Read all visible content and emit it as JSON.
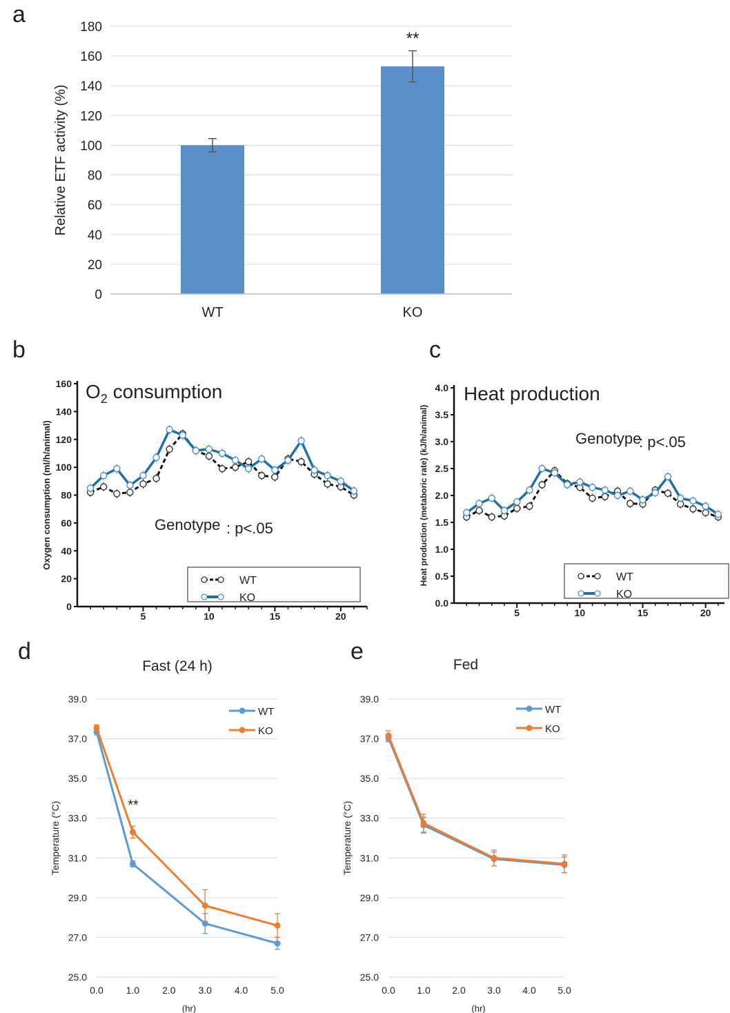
{
  "panels": {
    "a": "a",
    "b": "b",
    "c": "c",
    "d": "d",
    "e": "e"
  },
  "chart_data": [
    {
      "id": "a",
      "type": "bar",
      "categories": [
        "WT",
        "KO"
      ],
      "values": [
        100,
        153
      ],
      "errors": [
        4.5,
        10.5
      ],
      "ylabel": "Relative ETF activity (%)",
      "ylim": [
        0,
        180
      ],
      "yticks": [
        0,
        20,
        40,
        60,
        80,
        100,
        120,
        140,
        160,
        180
      ],
      "grid": true,
      "annotation": "**",
      "colors": {
        "bar": "#5b8fc9",
        "error": "#555555",
        "grid": "#d9d9d9"
      }
    },
    {
      "id": "b",
      "type": "line",
      "title_main": "O",
      "title_sub": "2",
      "title_rest": " consumption",
      "ylabel": "Oxygen consumption (ml/h/animal)",
      "ylim": [
        0,
        160
      ],
      "xlim": [
        0,
        22
      ],
      "yticks": [
        0,
        20,
        40,
        60,
        80,
        100,
        120,
        140,
        160
      ],
      "xticks": [
        5,
        10,
        15,
        20
      ],
      "x": [
        1,
        2,
        3,
        4,
        5,
        6,
        7,
        8,
        9,
        10,
        11,
        12,
        13,
        14,
        15,
        16,
        17,
        18,
        19,
        20,
        21
      ],
      "series": [
        {
          "name": "WT",
          "values": [
            82,
            86,
            81,
            82,
            88,
            92,
            113,
            124,
            112,
            108,
            99,
            100,
            104,
            94,
            93,
            106,
            104,
            95,
            88,
            86,
            80
          ]
        },
        {
          "name": "KO",
          "values": [
            85,
            94,
            99,
            87,
            94,
            107,
            127,
            123,
            112,
            113,
            110,
            105,
            99,
            106,
            98,
            105,
            119,
            98,
            94,
            90,
            83
          ]
        }
      ],
      "annotation_label": "Genotype",
      "annotation_value": ": p<.05",
      "colors": {
        "WT": "#111111",
        "KO": "#1f6fa8"
      }
    },
    {
      "id": "c",
      "type": "line",
      "title": "Heat production",
      "ylabel": "Heat production (metaboric rate) (kJ/h/animal)",
      "ylim": [
        0,
        4
      ],
      "xlim": [
        0,
        21.5
      ],
      "yticks": [
        "0.0",
        "0.5",
        "1.0",
        "1.5",
        "2.0",
        "2.5",
        "3.0",
        "3.5",
        "4.0"
      ],
      "xticks": [
        5,
        10,
        15,
        20
      ],
      "x": [
        1,
        2,
        3,
        4,
        5,
        6,
        7,
        8,
        9,
        10,
        11,
        12,
        13,
        14,
        15,
        16,
        17,
        18,
        19,
        20,
        21
      ],
      "series": [
        {
          "name": "WT",
          "values": [
            1.6,
            1.72,
            1.6,
            1.62,
            1.76,
            1.8,
            2.2,
            2.46,
            2.22,
            2.15,
            1.95,
            1.98,
            2.08,
            1.85,
            1.84,
            2.1,
            2.04,
            1.84,
            1.75,
            1.68,
            1.6
          ]
        },
        {
          "name": "KO",
          "values": [
            1.68,
            1.85,
            1.95,
            1.72,
            1.88,
            2.1,
            2.5,
            2.42,
            2.2,
            2.25,
            2.15,
            2.1,
            2.0,
            2.08,
            1.92,
            2.05,
            2.35,
            1.95,
            1.9,
            1.8,
            1.65
          ]
        }
      ],
      "annotation_label": "Genotype",
      "annotation_value": ": p<.05",
      "colors": {
        "WT": "#111111",
        "KO": "#1f6fa8"
      }
    },
    {
      "id": "d",
      "type": "line",
      "title": "Fast (24 h)",
      "ylabel": "Temperature (°C)",
      "xlabel": "(hr)",
      "ylim": [
        25,
        39
      ],
      "xlim": [
        0,
        5
      ],
      "yticks": [
        "25.0",
        "27.0",
        "29.0",
        "31.0",
        "33.0",
        "35.0",
        "37.0",
        "39.0"
      ],
      "xticks": [
        "0.0",
        "1.0",
        "2.0",
        "3.0",
        "4.0",
        "5.0"
      ],
      "x": [
        0,
        1,
        3,
        5
      ],
      "series": [
        {
          "name": "WT",
          "values": [
            37.35,
            30.7,
            27.7,
            26.7
          ],
          "errors": [
            0.15,
            0.15,
            0.5,
            0.3
          ]
        },
        {
          "name": "KO",
          "values": [
            37.55,
            32.3,
            28.6,
            27.6
          ],
          "errors": [
            0.15,
            0.3,
            0.8,
            0.6
          ]
        }
      ],
      "annotation": "**",
      "colors": {
        "WT": "#5b9bd5",
        "KO": "#ed7d31",
        "grid": "#d9d9d9"
      }
    },
    {
      "id": "e",
      "type": "line",
      "title": "Fed",
      "ylabel": "Temperature (°C)",
      "xlabel": "(hr)",
      "ylim": [
        25,
        39
      ],
      "xlim": [
        0,
        5
      ],
      "yticks": [
        "25.0",
        "27.0",
        "29.0",
        "31.0",
        "33.0",
        "35.0",
        "37.0",
        "39.0"
      ],
      "xticks": [
        "0.0",
        "1.0",
        "2.0",
        "3.0",
        "4.0",
        "5.0"
      ],
      "x": [
        0,
        1,
        3,
        5
      ],
      "series": [
        {
          "name": "WT",
          "values": [
            37.05,
            32.65,
            30.95,
            30.65
          ],
          "errors": [
            0.2,
            0.4,
            0.35,
            0.4
          ]
        },
        {
          "name": "KO",
          "values": [
            37.15,
            32.75,
            31.0,
            30.7
          ],
          "errors": [
            0.25,
            0.45,
            0.4,
            0.45
          ]
        }
      ],
      "colors": {
        "WT": "#5b9bd5",
        "KO": "#ed7d31",
        "grid": "#d9d9d9"
      }
    }
  ]
}
